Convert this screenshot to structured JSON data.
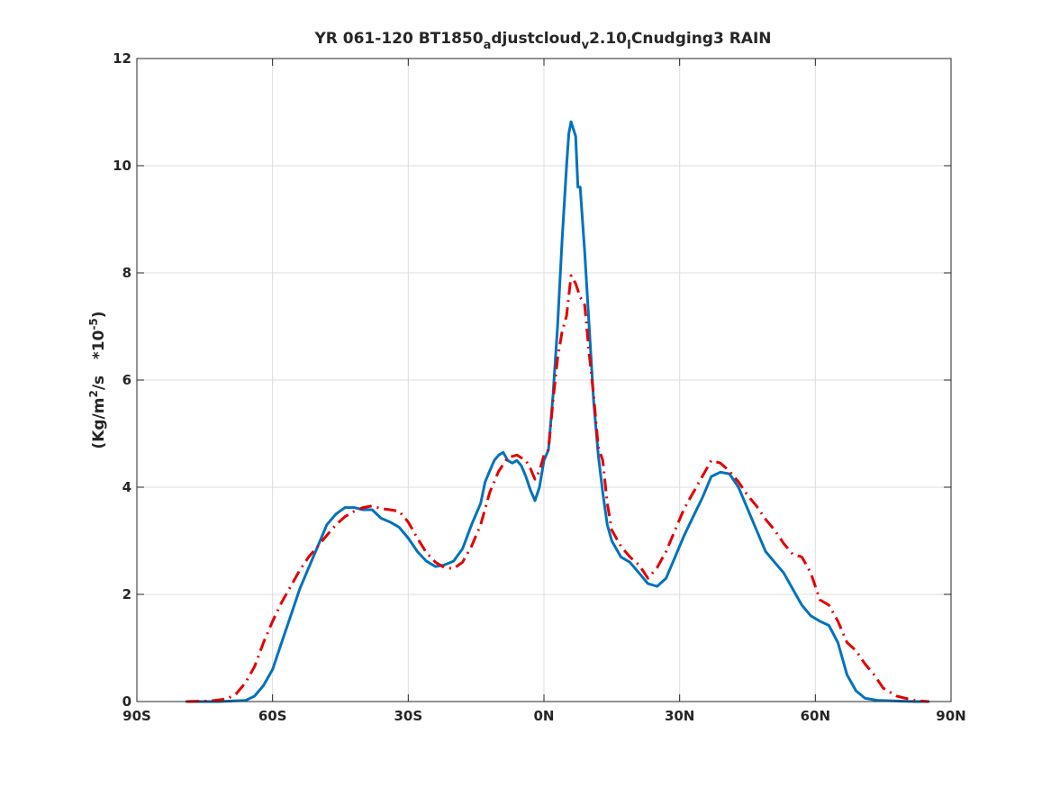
{
  "chart_data": {
    "type": "line",
    "title": {
      "main": "YR 061-120 BT1850",
      "sub_a": "a",
      "mid1": "djustcloud",
      "sub_v": "v",
      "mid2": "2.10",
      "sub_i": "I",
      "end": "Cnudging3 RAIN"
    },
    "ylabel": {
      "pre": "(Kg/m",
      "sup_2": "2",
      "mid": "/s   *10",
      "sup_exp": "-5",
      "post": ")"
    },
    "xlim": [
      -90,
      90
    ],
    "ylim": [
      0,
      12
    ],
    "grid": true,
    "xticks": [
      {
        "value": -90,
        "label": "90S"
      },
      {
        "value": -60,
        "label": "60S"
      },
      {
        "value": -30,
        "label": "30S"
      },
      {
        "value": 0,
        "label": "0N"
      },
      {
        "value": 30,
        "label": "30N"
      },
      {
        "value": 60,
        "label": "60N"
      },
      {
        "value": 90,
        "label": "90N"
      }
    ],
    "yticks": [
      {
        "value": 0,
        "label": "0"
      },
      {
        "value": 2,
        "label": "2"
      },
      {
        "value": 4,
        "label": "4"
      },
      {
        "value": 6,
        "label": "6"
      },
      {
        "value": 8,
        "label": "8"
      },
      {
        "value": 10,
        "label": "10"
      },
      {
        "value": 12,
        "label": "12"
      }
    ],
    "series": [
      {
        "color": "#0072BD",
        "style": "solid",
        "points": [
          [
            -79,
            0
          ],
          [
            -72,
            0
          ],
          [
            -66,
            0.02
          ],
          [
            -64,
            0.1
          ],
          [
            -62,
            0.3
          ],
          [
            -60,
            0.6
          ],
          [
            -58,
            1.1
          ],
          [
            -56,
            1.6
          ],
          [
            -54,
            2.1
          ],
          [
            -52,
            2.5
          ],
          [
            -50,
            2.9
          ],
          [
            -48,
            3.3
          ],
          [
            -46,
            3.5
          ],
          [
            -44,
            3.62
          ],
          [
            -42,
            3.62
          ],
          [
            -40,
            3.58
          ],
          [
            -38,
            3.58
          ],
          [
            -36,
            3.42
          ],
          [
            -34,
            3.35
          ],
          [
            -32,
            3.25
          ],
          [
            -30,
            3.05
          ],
          [
            -28,
            2.8
          ],
          [
            -26,
            2.62
          ],
          [
            -24,
            2.52
          ],
          [
            -22,
            2.55
          ],
          [
            -20,
            2.62
          ],
          [
            -18,
            2.85
          ],
          [
            -16,
            3.3
          ],
          [
            -14,
            3.7
          ],
          [
            -13,
            4.1
          ],
          [
            -12,
            4.3
          ],
          [
            -11,
            4.5
          ],
          [
            -10,
            4.6
          ],
          [
            -9,
            4.65
          ],
          [
            -8,
            4.5
          ],
          [
            -7,
            4.45
          ],
          [
            -6,
            4.5
          ],
          [
            -5,
            4.4
          ],
          [
            -4,
            4.2
          ],
          [
            -3,
            3.95
          ],
          [
            -2,
            3.75
          ],
          [
            -1,
            4.0
          ],
          [
            0,
            4.5
          ],
          [
            1,
            4.7
          ],
          [
            2,
            5.7
          ],
          [
            3,
            7.0
          ],
          [
            4,
            8.6
          ],
          [
            5,
            10.0
          ],
          [
            5.5,
            10.6
          ],
          [
            6,
            10.82
          ],
          [
            7,
            10.55
          ],
          [
            7.5,
            9.6
          ],
          [
            8,
            9.6
          ],
          [
            9,
            8.4
          ],
          [
            10,
            7.0
          ],
          [
            11,
            5.6
          ],
          [
            12,
            4.6
          ],
          [
            13,
            3.9
          ],
          [
            14,
            3.3
          ],
          [
            15,
            3.0
          ],
          [
            17,
            2.7
          ],
          [
            19,
            2.6
          ],
          [
            21,
            2.4
          ],
          [
            23,
            2.2
          ],
          [
            25,
            2.15
          ],
          [
            27,
            2.3
          ],
          [
            29,
            2.7
          ],
          [
            31,
            3.1
          ],
          [
            33,
            3.45
          ],
          [
            35,
            3.8
          ],
          [
            37,
            4.2
          ],
          [
            39,
            4.28
          ],
          [
            41,
            4.25
          ],
          [
            43,
            4.0
          ],
          [
            45,
            3.6
          ],
          [
            47,
            3.2
          ],
          [
            49,
            2.8
          ],
          [
            51,
            2.6
          ],
          [
            53,
            2.4
          ],
          [
            55,
            2.1
          ],
          [
            57,
            1.8
          ],
          [
            59,
            1.6
          ],
          [
            61,
            1.5
          ],
          [
            63,
            1.42
          ],
          [
            65,
            1.1
          ],
          [
            67,
            0.5
          ],
          [
            69,
            0.2
          ],
          [
            71,
            0.06
          ],
          [
            74,
            0.02
          ],
          [
            78,
            0.01
          ],
          [
            82,
            0
          ],
          [
            85,
            0
          ]
        ]
      },
      {
        "color": "#E40000",
        "style": "dashdot",
        "points": [
          [
            -79,
            0
          ],
          [
            -74,
            0.01
          ],
          [
            -70,
            0.05
          ],
          [
            -68,
            0.15
          ],
          [
            -66,
            0.35
          ],
          [
            -64,
            0.65
          ],
          [
            -62,
            1.1
          ],
          [
            -60,
            1.5
          ],
          [
            -58,
            1.85
          ],
          [
            -56,
            2.15
          ],
          [
            -54,
            2.45
          ],
          [
            -52,
            2.7
          ],
          [
            -50,
            2.9
          ],
          [
            -48,
            3.1
          ],
          [
            -46,
            3.3
          ],
          [
            -44,
            3.45
          ],
          [
            -42,
            3.55
          ],
          [
            -40,
            3.62
          ],
          [
            -38,
            3.65
          ],
          [
            -36,
            3.6
          ],
          [
            -34,
            3.58
          ],
          [
            -32,
            3.55
          ],
          [
            -30,
            3.35
          ],
          [
            -28,
            3.05
          ],
          [
            -26,
            2.78
          ],
          [
            -24,
            2.6
          ],
          [
            -22,
            2.5
          ],
          [
            -20,
            2.48
          ],
          [
            -18,
            2.6
          ],
          [
            -16,
            2.9
          ],
          [
            -14,
            3.3
          ],
          [
            -12,
            3.9
          ],
          [
            -10,
            4.3
          ],
          [
            -8,
            4.55
          ],
          [
            -6,
            4.6
          ],
          [
            -4,
            4.5
          ],
          [
            -3,
            4.35
          ],
          [
            -2,
            4.15
          ],
          [
            -1,
            4.3
          ],
          [
            0,
            4.6
          ],
          [
            1,
            4.7
          ],
          [
            2,
            5.6
          ],
          [
            3,
            6.4
          ],
          [
            4,
            6.9
          ],
          [
            5,
            7.2
          ],
          [
            6,
            7.95
          ],
          [
            7,
            7.8
          ],
          [
            8,
            7.55
          ],
          [
            9,
            7.4
          ],
          [
            10,
            6.5
          ],
          [
            11,
            5.7
          ],
          [
            12,
            4.75
          ],
          [
            13,
            4.5
          ],
          [
            14,
            3.7
          ],
          [
            15,
            3.2
          ],
          [
            17,
            2.9
          ],
          [
            19,
            2.7
          ],
          [
            21,
            2.55
          ],
          [
            23,
            2.3
          ],
          [
            25,
            2.5
          ],
          [
            27,
            2.8
          ],
          [
            29,
            3.2
          ],
          [
            31,
            3.6
          ],
          [
            33,
            3.9
          ],
          [
            35,
            4.2
          ],
          [
            37,
            4.5
          ],
          [
            39,
            4.45
          ],
          [
            41,
            4.3
          ],
          [
            43,
            4.1
          ],
          [
            45,
            3.85
          ],
          [
            47,
            3.65
          ],
          [
            49,
            3.4
          ],
          [
            51,
            3.2
          ],
          [
            53,
            2.95
          ],
          [
            55,
            2.75
          ],
          [
            57,
            2.7
          ],
          [
            59,
            2.4
          ],
          [
            61,
            1.9
          ],
          [
            63,
            1.8
          ],
          [
            65,
            1.5
          ],
          [
            67,
            1.1
          ],
          [
            69,
            0.95
          ],
          [
            71,
            0.7
          ],
          [
            73,
            0.5
          ],
          [
            75,
            0.25
          ],
          [
            78,
            0.1
          ],
          [
            82,
            0.02
          ],
          [
            85,
            0
          ]
        ]
      }
    ]
  }
}
